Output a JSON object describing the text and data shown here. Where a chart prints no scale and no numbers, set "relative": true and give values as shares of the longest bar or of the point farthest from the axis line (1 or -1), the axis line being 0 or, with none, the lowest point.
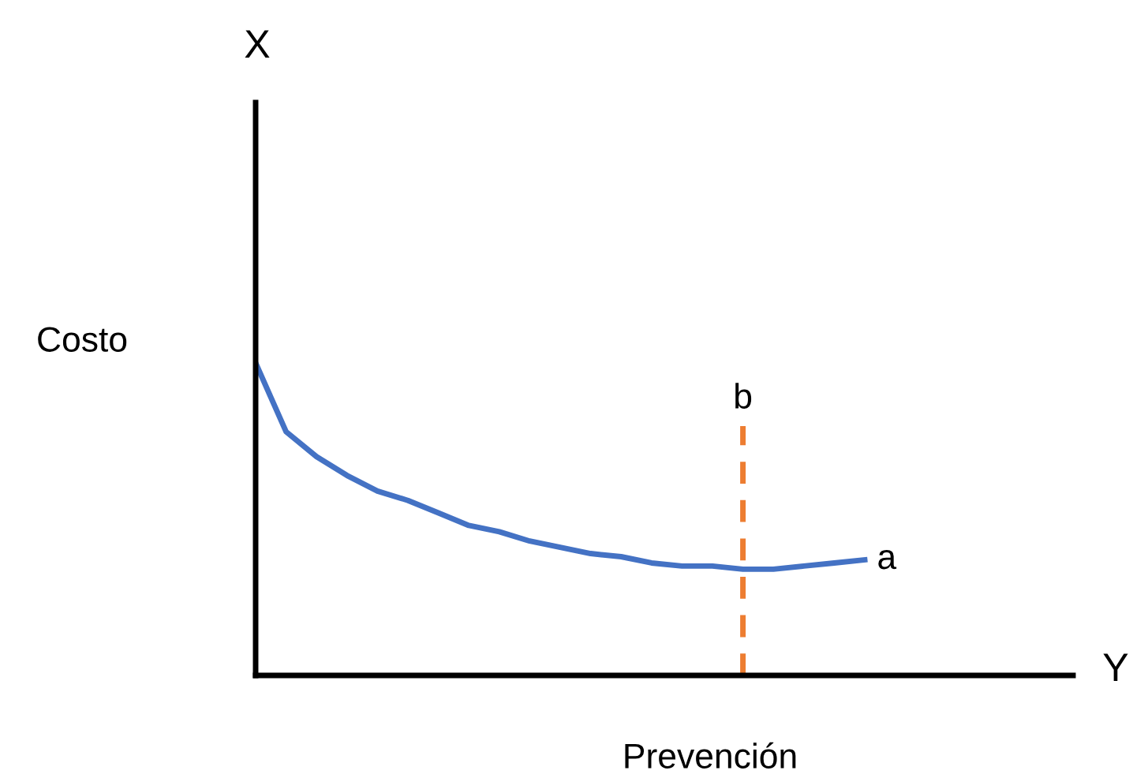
{
  "chart_data": {
    "type": "line",
    "relative": true,
    "xlabel": "Prevención",
    "ylabel": "Costo",
    "annotations": [
      "X",
      "Y",
      "b"
    ],
    "categories": [
      null,
      null,
      null,
      null,
      null,
      null,
      null,
      null,
      null,
      null,
      null,
      null,
      null,
      null,
      null,
      null,
      null,
      null,
      null,
      null,
      null
    ],
    "series": [
      {
        "name": "a",
        "color": "#4472c4",
        "values": [
          1,
          0.78,
          0.7,
          0.64,
          0.59,
          0.56,
          0.52,
          0.48,
          0.46,
          0.43,
          0.41,
          0.39,
          0.38,
          0.36,
          0.35,
          0.35,
          0.34,
          0.34,
          0.35,
          0.36,
          0.37
        ]
      }
    ],
    "grid": false,
    "legend": false,
    "marker": "none"
  }
}
